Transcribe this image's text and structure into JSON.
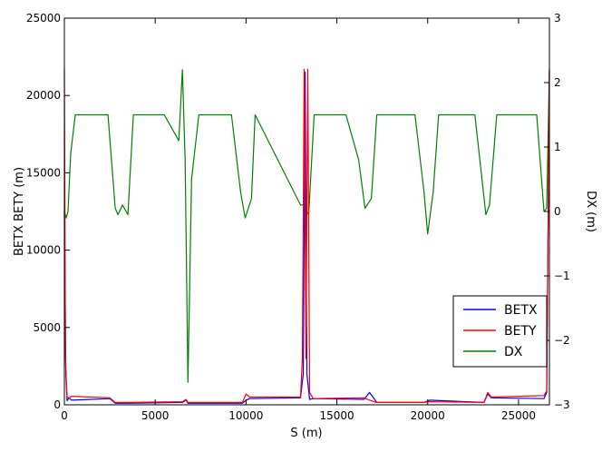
{
  "chart_data": {
    "type": "line",
    "xlabel": "S (m)",
    "ylabel_left": "BETX BETY (m)",
    "ylabel_right": "DX (m)",
    "xlim": [
      0,
      26700
    ],
    "ylim_left": [
      0,
      25000
    ],
    "ylim_right": [
      -3,
      3
    ],
    "x_ticks": [
      0,
      5000,
      10000,
      15000,
      20000,
      25000
    ],
    "y_left_ticks": [
      0,
      5000,
      10000,
      15000,
      20000,
      25000
    ],
    "y_right_ticks": [
      -3,
      -2,
      -1,
      0,
      1,
      2,
      3
    ],
    "y_right_tick_labels": [
      "−3",
      "−2",
      "−1",
      "0",
      "1",
      "2",
      "3"
    ],
    "legend": {
      "placement": "lower-right",
      "entries": [
        "BETX",
        "BETY",
        "DX"
      ]
    },
    "series": [
      {
        "name": "BETX",
        "axis": "left",
        "color": "#0000ff",
        "x": [
          0,
          80,
          150,
          250,
          400,
          2500,
          2800,
          3500,
          6500,
          6700,
          6800,
          9800,
          10000,
          10200,
          13000,
          13150,
          13250,
          13350,
          13500,
          13700,
          16500,
          16800,
          17200,
          19800,
          20100,
          23100,
          23300,
          23500,
          26400,
          26550,
          26700
        ],
        "y": [
          12500,
          2000,
          250,
          450,
          300,
          400,
          100,
          100,
          150,
          300,
          100,
          100,
          300,
          400,
          450,
          2000,
          21500,
          2000,
          350,
          400,
          350,
          800,
          150,
          150,
          300,
          150,
          700,
          450,
          400,
          800,
          21500
        ]
      },
      {
        "name": "BETY",
        "axis": "left",
        "color": "#ff0000",
        "x": [
          0,
          60,
          150,
          250,
          400,
          2500,
          2800,
          3500,
          6500,
          6700,
          6800,
          9800,
          10000,
          10200,
          13000,
          13100,
          13200,
          13300,
          13400,
          13500,
          13700,
          16500,
          16800,
          17200,
          19800,
          20100,
          23100,
          23300,
          23500,
          26400,
          26550,
          26700
        ],
        "y": [
          21700,
          3000,
          500,
          450,
          550,
          450,
          150,
          150,
          200,
          350,
          150,
          150,
          700,
          500,
          500,
          3000,
          21700,
          3000,
          21700,
          800,
          400,
          450,
          300,
          150,
          150,
          200,
          150,
          800,
          500,
          600,
          900,
          21700
        ]
      },
      {
        "name": "DX",
        "axis": "right",
        "color": "#008000",
        "x": [
          0,
          100,
          200,
          350,
          600,
          2400,
          2800,
          2950,
          3200,
          3500,
          3800,
          5500,
          6300,
          6500,
          6650,
          6800,
          7000,
          7400,
          9200,
          9700,
          9950,
          10300,
          10500,
          13000,
          13150,
          13450,
          13750,
          15500,
          16200,
          16550,
          16900,
          17200,
          19300,
          19800,
          20000,
          20300,
          20600,
          22600,
          23200,
          23400,
          23800,
          26000,
          26400,
          26550,
          26700
        ],
        "y": [
          0.0,
          -0.1,
          0.0,
          0.9,
          1.5,
          1.5,
          0.05,
          -0.05,
          0.1,
          -0.05,
          1.5,
          1.5,
          1.1,
          2.2,
          0.8,
          -2.65,
          0.5,
          1.5,
          1.5,
          0.3,
          -0.1,
          0.2,
          1.5,
          0.1,
          0.1,
          -0.05,
          1.5,
          1.5,
          0.8,
          0.05,
          0.2,
          1.5,
          1.5,
          0.3,
          -0.35,
          0.3,
          1.5,
          1.5,
          -0.05,
          0.1,
          1.5,
          1.5,
          0.0,
          0.05,
          2.2
        ]
      }
    ]
  }
}
